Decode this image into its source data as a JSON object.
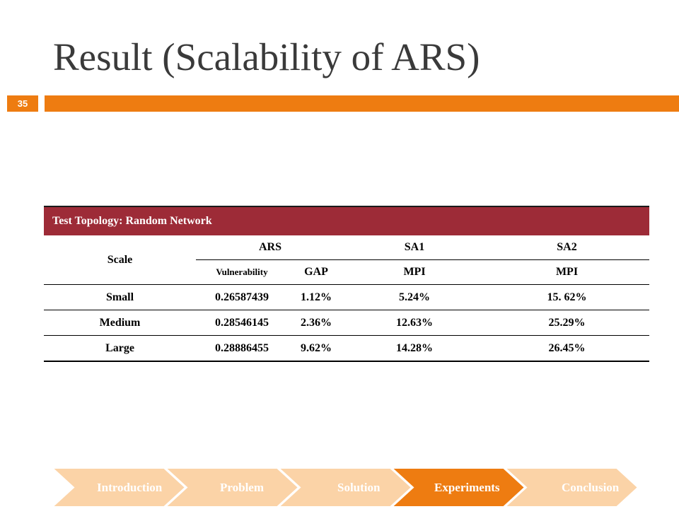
{
  "slide": {
    "title": "Result (Scalability of ARS)",
    "number": "35"
  },
  "table": {
    "caption": "Test Topology: Random Network",
    "header": {
      "scale": "Scale",
      "ars": "ARS",
      "sa1": "SA1",
      "sa2": "SA2",
      "vulnerability": "Vulnerability",
      "gap": "GAP",
      "mpi1": "MPI",
      "mpi2": "MPI"
    },
    "rows": [
      {
        "scale": "Small",
        "vulnerability": "0.26587439",
        "gap": "1.12%",
        "sa1": "5.24%",
        "sa2": "15. 62%"
      },
      {
        "scale": "Medium",
        "vulnerability": "0.28546145",
        "gap": "2.36%",
        "sa1": "12.63%",
        "sa2": "25.29%"
      },
      {
        "scale": "Large",
        "vulnerability": "0.28886455",
        "gap": "9.62%",
        "sa1": "14.28%",
        "sa2": "26.45%"
      }
    ]
  },
  "nav": {
    "items": [
      "Introduction",
      "Problem",
      "Solution",
      "Experiments",
      "Conclusion"
    ],
    "active_index": 3,
    "colors": {
      "inactive": "#fbd3a7",
      "active": "#ee7c11",
      "accent": "#9d2b37"
    }
  }
}
